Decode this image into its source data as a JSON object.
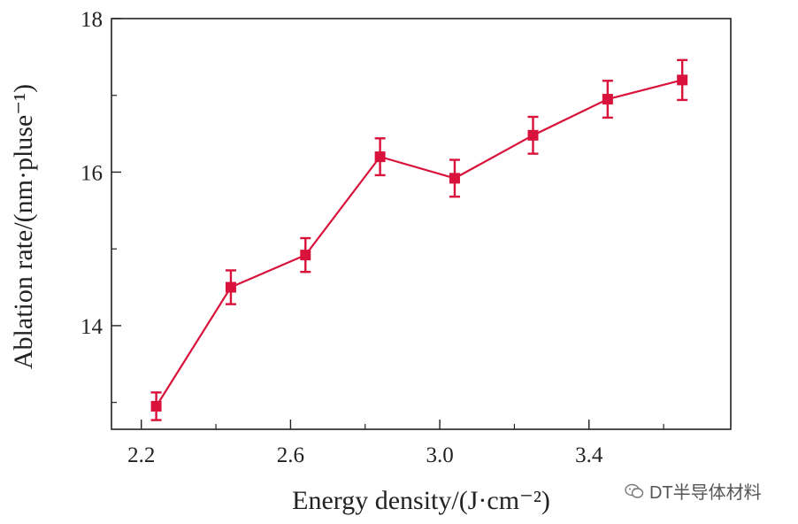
{
  "chart_data": {
    "type": "line",
    "xlabel": "Energy density/(J·cm⁻²)",
    "ylabel": "Ablation rate/(nm·pluse⁻¹)",
    "xlim": [
      2.12,
      3.78
    ],
    "ylim": [
      12.65,
      18.0
    ],
    "x_ticks": [
      {
        "value": 2.2,
        "label": "2.2"
      },
      {
        "value": 2.6,
        "label": "2.6"
      },
      {
        "value": 3.0,
        "label": "3.0"
      },
      {
        "value": 3.4,
        "label": "3.4"
      }
    ],
    "x_minor_ticks": [
      2.4,
      2.8,
      3.2,
      3.6
    ],
    "y_ticks": [
      {
        "value": 14,
        "label": "14"
      },
      {
        "value": 16,
        "label": "16"
      },
      {
        "value": 18,
        "label": "18"
      }
    ],
    "y_minor_ticks": [
      13,
      15,
      17
    ],
    "grid": false,
    "marker": "square",
    "color": "#d8123a",
    "series": [
      {
        "x": [
          2.24,
          2.44,
          2.64,
          2.84,
          3.04,
          3.25,
          3.45,
          3.65
        ],
        "y": [
          12.95,
          14.5,
          14.92,
          16.2,
          15.92,
          16.48,
          16.95,
          17.2
        ],
        "error": [
          0.18,
          0.22,
          0.22,
          0.24,
          0.24,
          0.24,
          0.24,
          0.26
        ]
      }
    ]
  },
  "watermark": {
    "icon": "wechat-icon",
    "text": "DT半导体材料"
  }
}
